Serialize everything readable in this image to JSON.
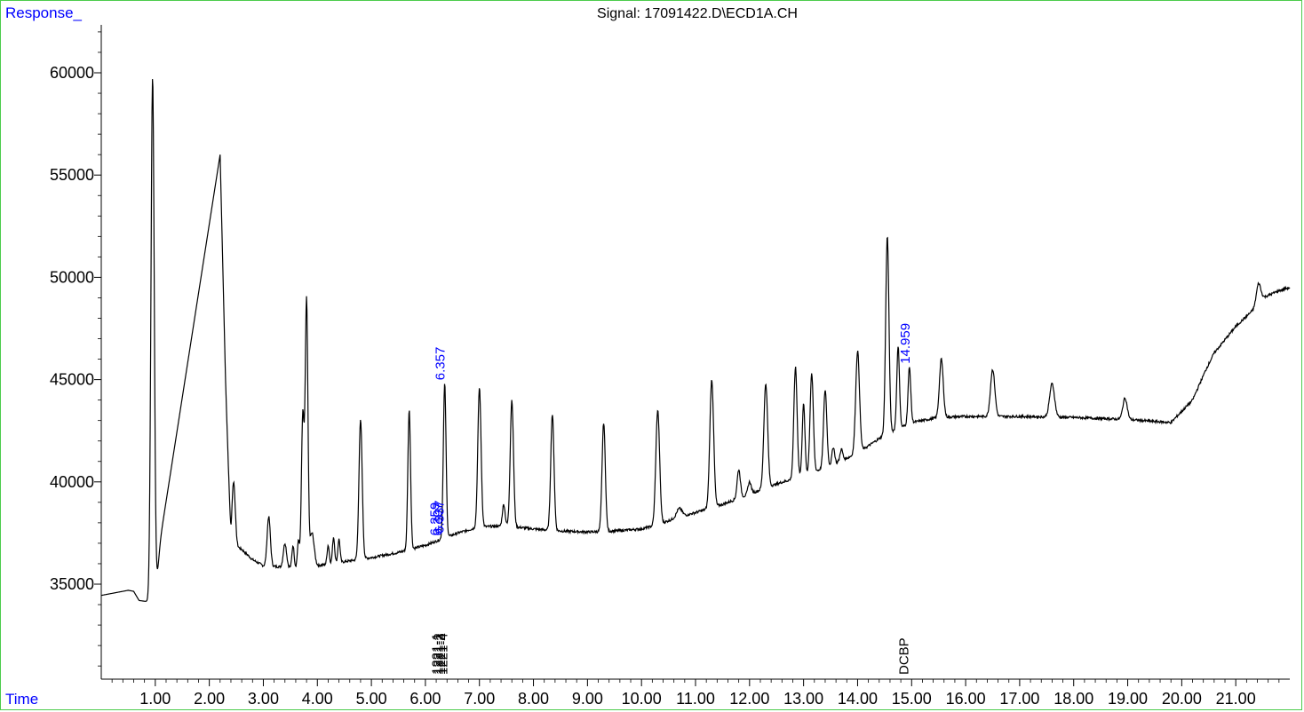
{
  "chart_data": {
    "type": "line",
    "title": "Signal: 17091422.D\\ECD1A.CH",
    "ylabel": "Response_",
    "xlabel": "Time",
    "xlim": [
      0.0,
      22.0
    ],
    "ylim": [
      30500,
      62500
    ],
    "xticks": [
      1.0,
      2.0,
      3.0,
      4.0,
      5.0,
      6.0,
      7.0,
      8.0,
      9.0,
      10.0,
      11.0,
      12.0,
      13.0,
      14.0,
      15.0,
      16.0,
      17.0,
      18.0,
      19.0,
      20.0,
      21.0
    ],
    "xtick_labels": [
      "1.00",
      "2.00",
      "3.00",
      "4.00",
      "5.00",
      "6.00",
      "7.00",
      "8.00",
      "9.00",
      "10.00",
      "11.00",
      "12.00",
      "13.00",
      "14.00",
      "15.00",
      "16.00",
      "17.00",
      "18.00",
      "19.00",
      "20.00",
      "21.00"
    ],
    "yticks": [
      35000,
      40000,
      45000,
      50000,
      55000,
      60000
    ],
    "ytick_labels": [
      "35000",
      "40000",
      "45000",
      "50000",
      "55000",
      "60000"
    ],
    "colors": {
      "frame": "#4ccc4c",
      "trace": "#000000",
      "label": "#0000ff",
      "axis_title": "#0000ff"
    },
    "series": [
      {
        "baseline": [
          [
            0.0,
            34450
          ],
          [
            0.5,
            34700
          ],
          [
            0.6,
            34650
          ],
          [
            0.7,
            34200
          ],
          [
            0.85,
            34150
          ],
          [
            0.92,
            34300
          ],
          [
            2.2,
            56000
          ],
          [
            2.3,
            45000
          ],
          [
            2.4,
            37000
          ],
          [
            2.6,
            36700
          ],
          [
            2.8,
            36200
          ],
          [
            3.0,
            35900
          ],
          [
            3.3,
            35850
          ],
          [
            3.6,
            35800
          ],
          [
            4.0,
            35900
          ],
          [
            4.5,
            36100
          ],
          [
            5.0,
            36300
          ],
          [
            5.5,
            36550
          ],
          [
            6.0,
            36900
          ],
          [
            6.3,
            37200
          ],
          [
            6.6,
            37500
          ],
          [
            7.0,
            37800
          ],
          [
            7.5,
            37850
          ],
          [
            8.0,
            37700
          ],
          [
            8.5,
            37600
          ],
          [
            9.0,
            37550
          ],
          [
            9.5,
            37600
          ],
          [
            10.0,
            37700
          ],
          [
            10.3,
            37900
          ],
          [
            10.6,
            38200
          ],
          [
            11.0,
            38500
          ],
          [
            11.5,
            38900
          ],
          [
            12.0,
            39400
          ],
          [
            12.5,
            39900
          ],
          [
            13.0,
            40300
          ],
          [
            13.5,
            40800
          ],
          [
            14.0,
            41400
          ],
          [
            14.5,
            42300
          ],
          [
            15.0,
            42900
          ],
          [
            15.5,
            43150
          ],
          [
            16.0,
            43200
          ],
          [
            17.0,
            43200
          ],
          [
            18.0,
            43150
          ],
          [
            19.0,
            43050
          ],
          [
            19.8,
            42900
          ],
          [
            20.2,
            44000
          ],
          [
            20.45,
            45500
          ],
          [
            20.6,
            46300
          ],
          [
            21.0,
            47600
          ],
          [
            21.4,
            48600
          ],
          [
            21.5,
            49000
          ],
          [
            21.8,
            49350
          ],
          [
            22.0,
            49500
          ]
        ],
        "peaks": [
          [
            0.95,
            60000,
            0.03
          ],
          [
            1.02,
            35000,
            0.04
          ],
          [
            2.45,
            40000,
            0.03
          ],
          [
            3.1,
            38300,
            0.03
          ],
          [
            3.4,
            37000,
            0.03
          ],
          [
            3.55,
            36900,
            0.02
          ],
          [
            3.65,
            37100,
            0.02
          ],
          [
            3.73,
            43200,
            0.025
          ],
          [
            3.8,
            48800,
            0.025
          ],
          [
            3.9,
            37500,
            0.04
          ],
          [
            4.2,
            36900,
            0.02
          ],
          [
            4.3,
            37300,
            0.02
          ],
          [
            4.4,
            37200,
            0.02
          ],
          [
            4.8,
            43000,
            0.03
          ],
          [
            5.7,
            43500,
            0.025
          ],
          [
            6.357,
            44800,
            0.025
          ],
          [
            7.0,
            44600,
            0.03
          ],
          [
            7.45,
            38900,
            0.025
          ],
          [
            7.6,
            44000,
            0.03
          ],
          [
            8.35,
            43300,
            0.03
          ],
          [
            9.3,
            42900,
            0.03
          ],
          [
            10.3,
            43500,
            0.035
          ],
          [
            10.7,
            38700,
            0.05
          ],
          [
            11.3,
            45000,
            0.035
          ],
          [
            11.8,
            40600,
            0.03
          ],
          [
            12.0,
            40000,
            0.03
          ],
          [
            12.3,
            44800,
            0.035
          ],
          [
            12.85,
            45600,
            0.03
          ],
          [
            13.0,
            43800,
            0.025
          ],
          [
            13.15,
            45300,
            0.03
          ],
          [
            13.4,
            44500,
            0.03
          ],
          [
            13.55,
            41700,
            0.025
          ],
          [
            13.7,
            41600,
            0.025
          ],
          [
            14.0,
            46400,
            0.035
          ],
          [
            14.55,
            52000,
            0.03
          ],
          [
            14.75,
            46600,
            0.025
          ],
          [
            14.959,
            45600,
            0.025
          ],
          [
            15.55,
            46000,
            0.035
          ],
          [
            16.5,
            45500,
            0.04
          ],
          [
            17.6,
            44800,
            0.045
          ],
          [
            18.95,
            44100,
            0.04
          ],
          [
            21.42,
            49700,
            0.04
          ]
        ]
      }
    ],
    "annotations": [
      {
        "label": "6.357",
        "x": 6.357,
        "y": 44800
      },
      {
        "label": "14.959",
        "x": 14.959,
        "y": 45600
      },
      {
        "label": "6.259",
        "x": 6.259,
        "y": 37200
      },
      {
        "label": "6.307",
        "x": 6.307,
        "y": 37200
      },
      {
        "label": "6.337",
        "x": 6.337,
        "y": 37300
      }
    ],
    "compound_labels": [
      {
        "label": "1221-1",
        "x": 6.22
      },
      {
        "label": "1221-2",
        "x": 6.26
      },
      {
        "label": "1221-3",
        "x": 6.3
      },
      {
        "label": "1221-4",
        "x": 6.34
      },
      {
        "label": "DCBP",
        "x": 14.87
      }
    ]
  }
}
